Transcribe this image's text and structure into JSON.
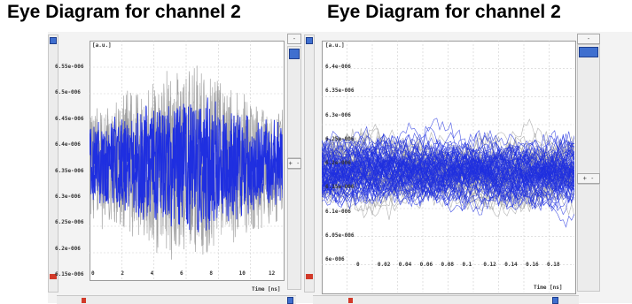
{
  "titles": {
    "left": "Eye Diagram for channel 2",
    "right": "Eye Diagram for channel 2"
  },
  "left_plot": {
    "y_unit": "[a.u.]",
    "x_unit": "[ns]",
    "x_label": "Time",
    "y_ticks": [
      "6.55e-006",
      "6.5e-006",
      "6.45e-006",
      "6.4e-006",
      "6.35e-006",
      "6.3e-006",
      "6.25e-006",
      "6.2e-006",
      "6.15e-006"
    ],
    "x_ticks": [
      "0",
      "2",
      "4",
      "6",
      "8",
      "10",
      "12"
    ]
  },
  "right_plot": {
    "y_unit": "[a.u.]",
    "x_unit": "[ns]",
    "x_label": "Time",
    "y_ticks": [
      "6.4e-006",
      "6.35e-006",
      "6.3e-006",
      "6.25e-006",
      "6.2e-006",
      "6.15e-006",
      "6.1e-006",
      "6.05e-006",
      "6e-006"
    ],
    "x_ticks": [
      "0",
      "0.02",
      "0.04",
      "0.06",
      "0.08",
      "0.1",
      "0.12",
      "0.14",
      "0.16",
      "0.18"
    ]
  },
  "buttons": {
    "left_top": "-",
    "left_mid": "+ -",
    "right_top": "-",
    "right_mid": "+ -"
  },
  "colors": {
    "signal_blue": "#1f2fe0",
    "signal_gray": "#9a9a9a",
    "scroll_thumb": "#3f6fcf",
    "marker_red": "#d23a2a"
  }
}
